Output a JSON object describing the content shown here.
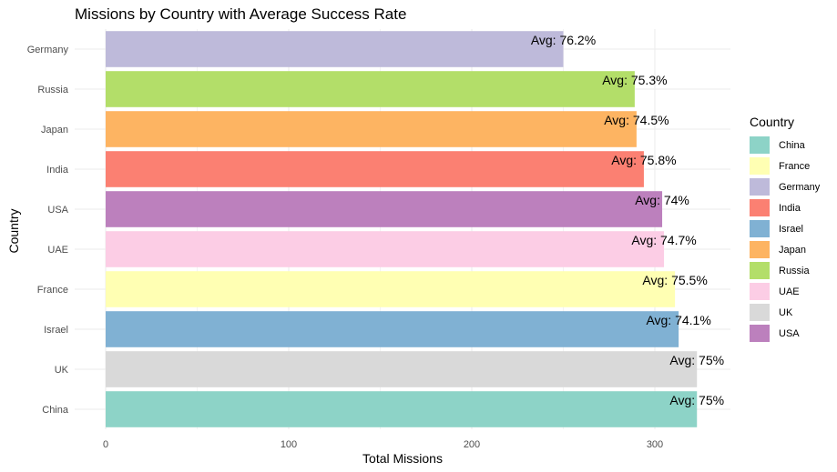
{
  "chart_data": {
    "type": "bar",
    "orientation": "horizontal",
    "title": "Missions by Country with Average Success Rate",
    "xlabel": "Total Missions",
    "ylabel": "Country",
    "xlim": [
      0,
      340
    ],
    "xticks": [
      0,
      100,
      200,
      300
    ],
    "grid": true,
    "legend_position": "right",
    "legend_title": "Country",
    "categories": [
      "Germany",
      "Russia",
      "Japan",
      "India",
      "USA",
      "UAE",
      "France",
      "Israel",
      "UK",
      "China"
    ],
    "values": [
      250,
      289,
      290,
      294,
      304,
      305,
      311,
      313,
      323,
      323
    ],
    "labels": [
      "Avg: 76.2%",
      "Avg: 75.3%",
      "Avg: 74.5%",
      "Avg: 75.8%",
      "Avg: 74%",
      "Avg: 74.7%",
      "Avg: 75.5%",
      "Avg: 74.1%",
      "Avg: 75%",
      "Avg: 75%"
    ],
    "colors": {
      "China": "#8DD3C7",
      "France": "#FFFFB3",
      "Germany": "#BEBADA",
      "India": "#FB8072",
      "Israel": "#80B1D3",
      "Japan": "#FDB462",
      "Russia": "#B3DE69",
      "UAE": "#FCCDE5",
      "UK": "#D9D9D9",
      "USA": "#BC80BD"
    },
    "legend_order": [
      "China",
      "France",
      "Germany",
      "India",
      "Israel",
      "Japan",
      "Russia",
      "UAE",
      "UK",
      "USA"
    ]
  }
}
